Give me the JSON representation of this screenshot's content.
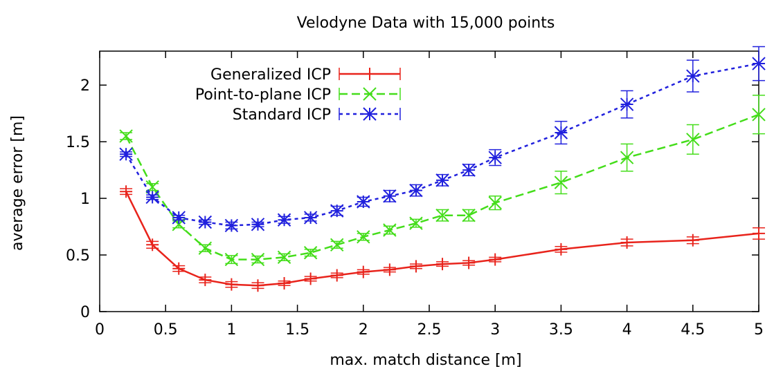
{
  "chart_data": {
    "type": "line",
    "title": "Velodyne Data with 15,000 points",
    "xlabel": "max. match distance [m]",
    "ylabel": "average error [m]",
    "xlim": [
      0,
      5
    ],
    "ylim": [
      0,
      2.3
    ],
    "xticks": [
      0,
      0.5,
      1,
      1.5,
      2,
      2.5,
      3,
      3.5,
      4,
      4.5,
      5
    ],
    "xtick_labels": [
      "0",
      "0.5",
      "1",
      "1.5",
      "2",
      "2.5",
      "3",
      "3.5",
      "4",
      "4.5",
      "5"
    ],
    "yticks": [
      0,
      0.5,
      1,
      1.5,
      2
    ],
    "ytick_labels": [
      "0",
      "0.5",
      "1",
      "1.5",
      "2"
    ],
    "grid": false,
    "legend_position": "top-left",
    "series": [
      {
        "name": "Generalized ICP",
        "color": "#e8231b",
        "marker": "plus",
        "dash": "solid",
        "x": [
          0.2,
          0.4,
          0.6,
          0.8,
          1.0,
          1.2,
          1.4,
          1.6,
          1.8,
          2.0,
          2.2,
          2.4,
          2.6,
          2.8,
          3.0,
          3.5,
          4.0,
          4.5,
          5.0
        ],
        "y": [
          1.06,
          0.59,
          0.38,
          0.28,
          0.24,
          0.23,
          0.25,
          0.29,
          0.32,
          0.35,
          0.37,
          0.4,
          0.42,
          0.43,
          0.46,
          0.55,
          0.61,
          0.63,
          0.69
        ],
        "err": [
          0.025,
          0.03,
          0.025,
          0.025,
          0.025,
          0.025,
          0.02,
          0.02,
          0.02,
          0.02,
          0.02,
          0.02,
          0.02,
          0.02,
          0.02,
          0.025,
          0.03,
          0.03,
          0.05
        ]
      },
      {
        "name": "Point-to-plane ICP",
        "color": "#44dd1a",
        "marker": "x",
        "dash": "long",
        "x": [
          0.2,
          0.4,
          0.6,
          0.8,
          1.0,
          1.2,
          1.4,
          1.6,
          1.8,
          2.0,
          2.2,
          2.4,
          2.6,
          2.8,
          3.0,
          3.5,
          4.0,
          4.5,
          5.0
        ],
        "y": [
          1.55,
          1.1,
          0.77,
          0.56,
          0.46,
          0.46,
          0.48,
          0.52,
          0.59,
          0.66,
          0.72,
          0.78,
          0.85,
          0.85,
          0.96,
          1.14,
          1.36,
          1.52,
          1.74
        ],
        "err": [
          0.03,
          0.03,
          0.03,
          0.03,
          0.035,
          0.03,
          0.03,
          0.03,
          0.03,
          0.03,
          0.035,
          0.035,
          0.05,
          0.05,
          0.06,
          0.1,
          0.12,
          0.13,
          0.17
        ]
      },
      {
        "name": "Standard ICP",
        "color": "#2020dd",
        "marker": "star",
        "dash": "short",
        "x": [
          0.2,
          0.4,
          0.6,
          0.8,
          1.0,
          1.2,
          1.4,
          1.6,
          1.8,
          2.0,
          2.2,
          2.4,
          2.6,
          2.8,
          3.0,
          3.5,
          4.0,
          4.5,
          5.0
        ],
        "y": [
          1.39,
          1.01,
          0.83,
          0.79,
          0.76,
          0.77,
          0.81,
          0.83,
          0.89,
          0.97,
          1.02,
          1.07,
          1.16,
          1.25,
          1.36,
          1.58,
          1.83,
          2.08,
          2.19
        ],
        "err": [
          0.02,
          0.02,
          0.02,
          0.02,
          0.03,
          0.02,
          0.03,
          0.03,
          0.04,
          0.04,
          0.05,
          0.05,
          0.05,
          0.05,
          0.07,
          0.1,
          0.12,
          0.14,
          0.15
        ]
      }
    ]
  }
}
